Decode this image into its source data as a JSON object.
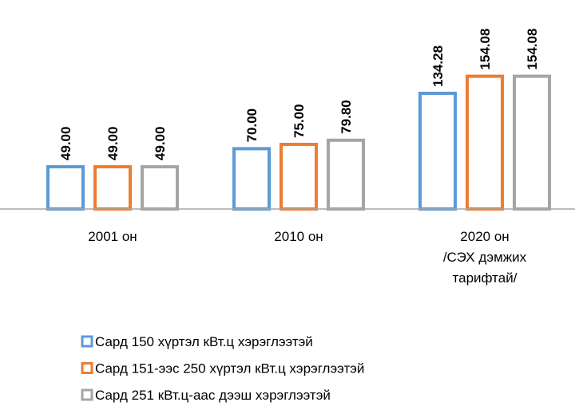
{
  "chart_data": {
    "type": "bar",
    "categories": [
      "2001 он",
      "2010 он",
      "2020 он\n/СЭХ дэмжих\nтарифтай/"
    ],
    "series": [
      {
        "name": "Сард 150 хүртэл кВт.ц хэрэглээтэй",
        "color": "#5b9bd5",
        "values": [
          49,
          70,
          134.28
        ],
        "value_labels": [
          "49.00",
          "70.00",
          "134.28"
        ]
      },
      {
        "name": "Сард 151-ээс 250 хүртэл кВт.ц хэрэглээтэй",
        "color": "#ed7d31",
        "values": [
          49,
          75,
          154.08
        ],
        "value_labels": [
          "49.00",
          "75.00",
          "154.08"
        ]
      },
      {
        "name": "Сард 251 кВт.ц-аас дээш хэрэглээтэй",
        "color": "#a5a5a5",
        "values": [
          49,
          79.8,
          154.08
        ],
        "value_labels": [
          "49.00",
          "79.80",
          "154.08"
        ]
      }
    ],
    "ylim": [
      0,
      200
    ],
    "legend": "bottom"
  }
}
